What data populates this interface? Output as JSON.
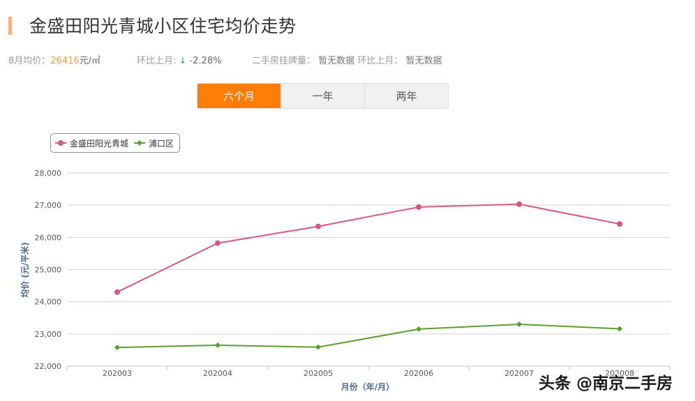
{
  "header": {
    "title": "金盛田阳光青城小区住宅均价走势",
    "accent_color": "#f5b07e"
  },
  "stats": {
    "avg_price_label": "8月均价：",
    "avg_price_value": "26416",
    "avg_price_unit": "元/㎡",
    "mom_label": "环比上月:",
    "mom_arrow": "↓",
    "mom_value": "-2.28%",
    "listing_label": "二手房挂牌量：",
    "listing_value": "暂无数据",
    "listing_mom_label": "环比上月：",
    "listing_mom_value": "暂无数据"
  },
  "tabs": [
    {
      "label": "六个月",
      "active": true
    },
    {
      "label": "一年",
      "active": false
    },
    {
      "label": "两年",
      "active": false
    }
  ],
  "watermark": "头条 @南京二手房",
  "chart_data": {
    "type": "line",
    "title": "",
    "xlabel": "月份（年/月）",
    "ylabel": "均价 (元/平米)",
    "categories": [
      "202003",
      "202004",
      "202005",
      "202006",
      "202007",
      "202008"
    ],
    "series": [
      {
        "name": "金盛田阳光青城",
        "color": "#d4587f",
        "marker": "circle",
        "values": [
          24300,
          25820,
          26340,
          26940,
          27030,
          26416
        ]
      },
      {
        "name": "浦口区",
        "color": "#5a9e2f",
        "marker": "diamond",
        "values": [
          22580,
          22650,
          22590,
          23150,
          23300,
          23160
        ]
      }
    ],
    "ylim": [
      22000,
      28000
    ],
    "yticks": [
      22000,
      23000,
      24000,
      25000,
      26000,
      27000,
      28000
    ],
    "ytick_labels": [
      "22,000",
      "23,000",
      "24,000",
      "25,000",
      "26,000",
      "27,000",
      "28,000"
    ],
    "grid": true,
    "legend_position": "top-left"
  }
}
